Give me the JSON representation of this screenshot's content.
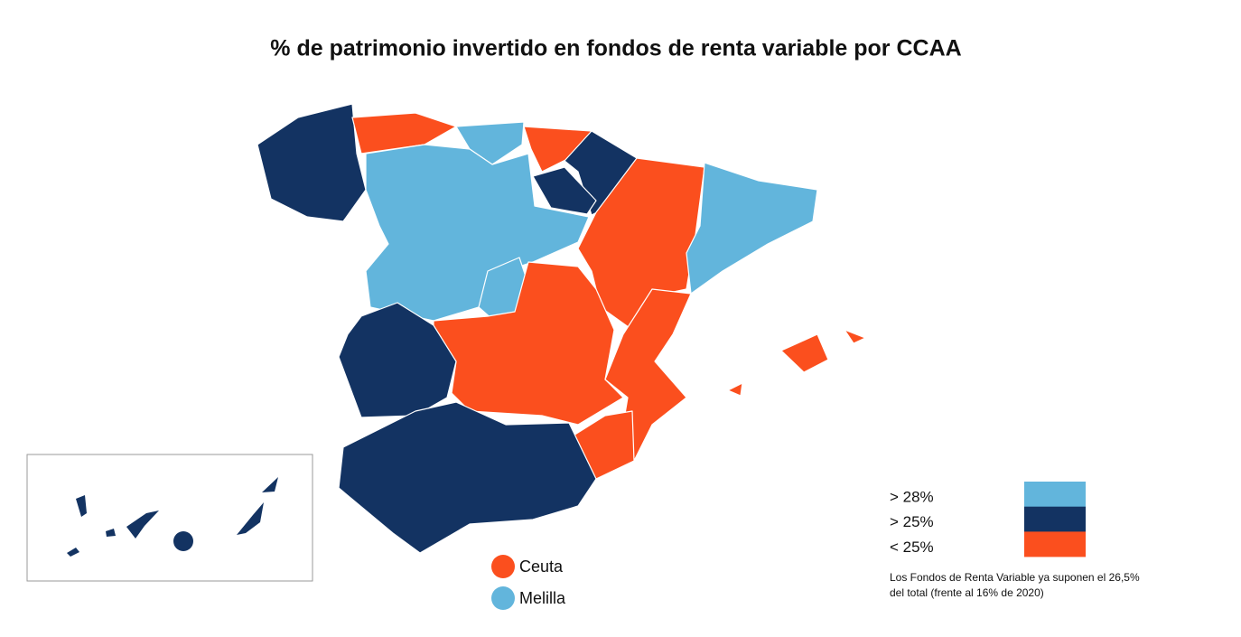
{
  "title": "% de patrimonio invertido en fondos de renta variable por CCAA",
  "legend": [
    {
      "label": "> 28%",
      "color": "#62b5dc"
    },
    {
      "label": "> 25%",
      "color": "#133362"
    },
    {
      "label": "< 25%",
      "color": "#fb4f1e"
    }
  ],
  "cities": [
    {
      "name": "Ceuta",
      "color": "#fb4f1e"
    },
    {
      "name": "Melilla",
      "color": "#62b5dc"
    }
  ],
  "note": [
    "Los Fondos de Renta Variable ya suponen el 26,5%",
    "del total (frente al 16% de 2020)"
  ]
}
